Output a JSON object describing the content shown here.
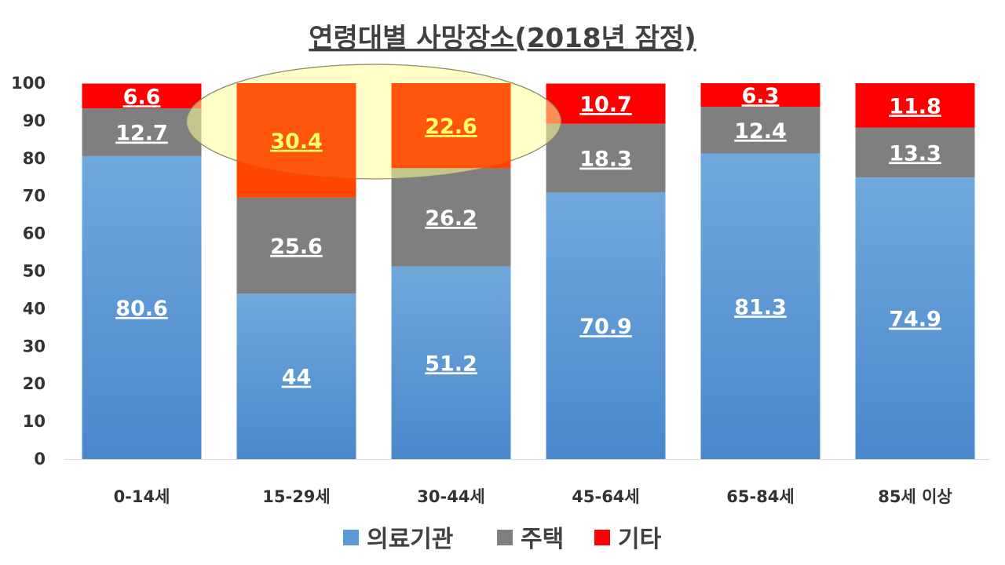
{
  "chart_data": {
    "type": "bar",
    "stacked": true,
    "title": "연령대별 사망장소(2018년 잠정)",
    "categories": [
      "0-14세",
      "15-29세",
      "30-44세",
      "45-64세",
      "65-84세",
      "85세 이상"
    ],
    "series": [
      {
        "name": "의료기관",
        "color": "#5B9BD5",
        "values": [
          80.6,
          44,
          51.2,
          70.9,
          81.3,
          74.9
        ]
      },
      {
        "name": "주택",
        "color": "#7F7F7F",
        "values": [
          12.7,
          25.6,
          26.2,
          18.3,
          12.4,
          13.3
        ]
      },
      {
        "name": "기타",
        "color": "#FF0000",
        "values": [
          6.6,
          30.4,
          22.6,
          10.7,
          6.3,
          11.8
        ]
      }
    ],
    "data_labels": [
      [
        "80.6",
        "44",
        "51.2",
        "70.9",
        "81.3",
        "74.9"
      ],
      [
        "12.7",
        "25.6",
        "26.2",
        "18.3",
        "12.4",
        "13.3"
      ],
      [
        "6.6",
        "30.4",
        "22.6",
        "10.7",
        "6.3",
        "11.8"
      ]
    ],
    "yticks": [
      "0",
      "10",
      "20",
      "30",
      "40",
      "50",
      "60",
      "70",
      "80",
      "90",
      "100"
    ],
    "ylim": [
      0,
      100
    ],
    "grid": false,
    "legend_position": "bottom",
    "highlight": {
      "shape": "ellipse",
      "fill": "#FFFF99",
      "emphasized_categories": [
        "15-29세",
        "30-44세"
      ],
      "emphasized_series": "기타",
      "emphasized_color": "#FF4500",
      "emphasized_label_color": "#FFFF66"
    }
  }
}
